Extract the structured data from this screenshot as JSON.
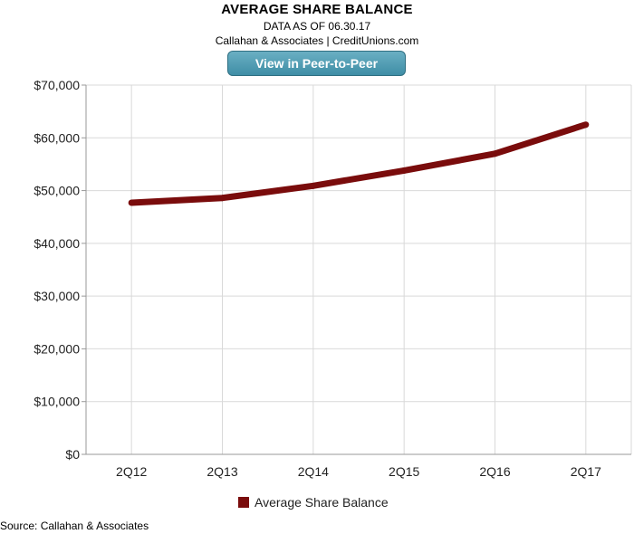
{
  "header": {
    "title": "AVERAGE SHARE BALANCE",
    "subtitle1": "DATA AS OF 06.30.17",
    "subtitle2": "Callahan & Associates | CreditUnions.com",
    "button_label": "View in Peer-to-Peer"
  },
  "footer": {
    "source": "Source: Callahan & Associates"
  },
  "colors": {
    "series": "#7a0c0c",
    "grid": "#d9d9d9",
    "axis": "#999999",
    "button": "#4f9bb3"
  },
  "chart_data": {
    "type": "line",
    "title": "AVERAGE SHARE BALANCE",
    "categories": [
      "2Q12",
      "2Q13",
      "2Q14",
      "2Q15",
      "2Q16",
      "2Q17"
    ],
    "series": [
      {
        "name": "Average Share Balance",
        "values": [
          47700,
          48600,
          50900,
          53800,
          57000,
          62500
        ]
      }
    ],
    "ylim": [
      0,
      70000
    ],
    "yticks": [
      0,
      10000,
      20000,
      30000,
      40000,
      50000,
      60000,
      70000
    ],
    "ytick_labels": [
      "$0",
      "$10,000",
      "$20,000",
      "$30,000",
      "$40,000",
      "$50,000",
      "$60,000",
      "$70,000"
    ],
    "grid": true,
    "legend": "bottom"
  }
}
